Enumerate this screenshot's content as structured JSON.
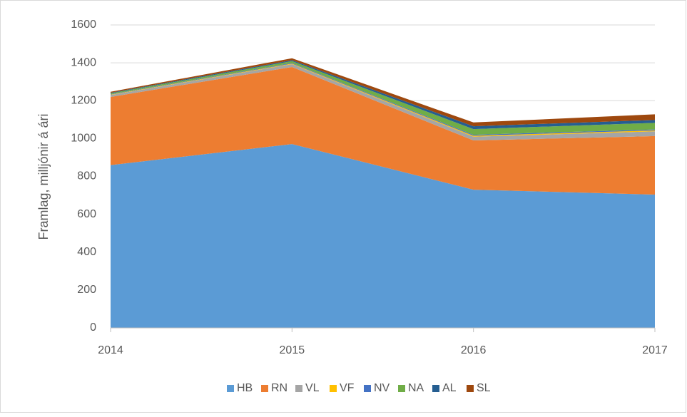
{
  "chart_data": {
    "type": "stacked_area",
    "y_label": "Framlag, milljónir á ári",
    "categories": [
      "2014",
      "2015",
      "2016",
      "2017"
    ],
    "series": [
      {
        "name": "HB",
        "color": "#5b9bd5",
        "values": [
          860,
          971,
          730,
          704
        ]
      },
      {
        "name": "RN",
        "color": "#ed7d31",
        "values": [
          360,
          407,
          260,
          309
        ]
      },
      {
        "name": "VL",
        "color": "#a5a5a5",
        "values": [
          10,
          15,
          20,
          25
        ]
      },
      {
        "name": "VF",
        "color": "#ffc000",
        "values": [
          2,
          3,
          5,
          5
        ]
      },
      {
        "name": "NV",
        "color": "#4472c4",
        "values": [
          2,
          3,
          5,
          5
        ]
      },
      {
        "name": "NA",
        "color": "#70ad47",
        "values": [
          5,
          10,
          30,
          35
        ]
      },
      {
        "name": "AL",
        "color": "#255e91",
        "values": [
          3,
          5,
          15,
          15
        ]
      },
      {
        "name": "SL",
        "color": "#9e480e",
        "values": [
          5,
          10,
          20,
          30
        ]
      }
    ],
    "ylim": [
      0,
      1600
    ],
    "yticks": [
      0,
      200,
      400,
      600,
      800,
      1000,
      1200,
      1400,
      1600
    ],
    "grid": true,
    "legend": "bottom"
  }
}
